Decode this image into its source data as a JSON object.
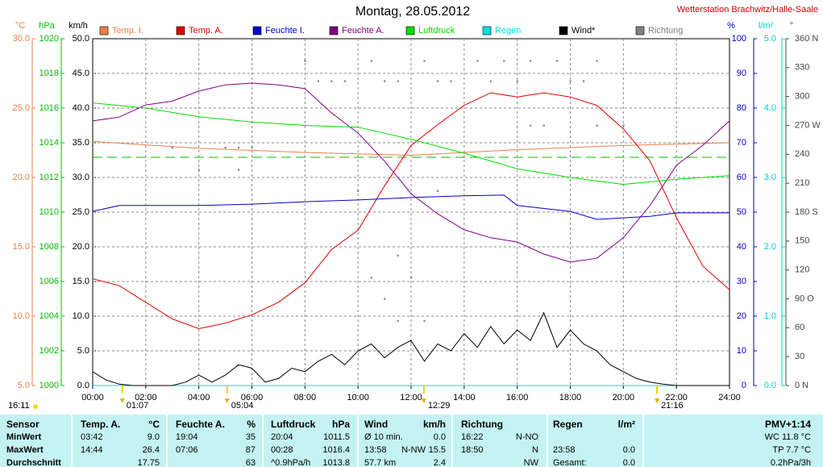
{
  "chart_data": {
    "type": "line",
    "title": "Montag, 28.05.2012",
    "subtitle": "Wetterstation Brachwitz/Halle-Saale",
    "xlim": [
      0,
      24
    ],
    "xticks": [
      {
        "value": 0,
        "label": "00:00"
      },
      {
        "value": 2,
        "label": "02:00"
      },
      {
        "value": 4,
        "label": "04:00"
      },
      {
        "value": 6,
        "label": "06:00"
      },
      {
        "value": 8,
        "label": "08:00"
      },
      {
        "value": 10,
        "label": "10:00"
      },
      {
        "value": 12,
        "label": "12:00"
      },
      {
        "value": 14,
        "label": "14:00"
      },
      {
        "value": 16,
        "label": "16:00"
      },
      {
        "value": 18,
        "label": "18:00"
      },
      {
        "value": 20,
        "label": "20:00"
      },
      {
        "value": 22,
        "label": "22:00"
      },
      {
        "value": 24,
        "label": "24:00"
      }
    ],
    "grid": true,
    "axes": [
      {
        "label": "°C",
        "color": "#e8804a",
        "ylim": [
          5,
          30
        ],
        "yticks": [
          {
            "value": 5,
            "label": "5.0"
          },
          {
            "value": 10,
            "label": "10.0"
          },
          {
            "value": 15,
            "label": "15.0"
          },
          {
            "value": 20,
            "label": "20.0"
          },
          {
            "value": 25,
            "label": "25.0"
          },
          {
            "value": 30,
            "label": "30.0"
          }
        ]
      },
      {
        "label": "hPa",
        "color": "#00c000",
        "ylim": [
          1000,
          1020
        ],
        "yticks": [
          1000,
          1002,
          1004,
          1006,
          1008,
          1010,
          1012,
          1014,
          1016,
          1018,
          1020
        ]
      },
      {
        "label": "km/h",
        "color": "#000000",
        "ylim": [
          0,
          50
        ],
        "yticks": [
          {
            "value": 0,
            "label": "0.0"
          },
          {
            "value": 5,
            "label": "5.0"
          },
          {
            "value": 10,
            "label": "10.0"
          },
          {
            "value": 15,
            "label": "15.0"
          },
          {
            "value": 20,
            "label": "20.0"
          },
          {
            "value": 25,
            "label": "25.0"
          },
          {
            "value": 30,
            "label": "30.0"
          },
          {
            "value": 35,
            "label": "35.0"
          },
          {
            "value": 40,
            "label": "40.0"
          },
          {
            "value": 45,
            "label": "45.0"
          },
          {
            "value": 50,
            "label": "50.0"
          }
        ]
      },
      {
        "label": "%",
        "color": "#0000cc",
        "ylim": [
          0,
          100
        ],
        "yticks": [
          0,
          10,
          20,
          30,
          40,
          50,
          60,
          70,
          80,
          90,
          100
        ]
      },
      {
        "label": "l/m²",
        "color": "#00d0d0",
        "ylim": [
          0,
          5
        ],
        "yticks": [
          {
            "value": 0,
            "label": "0.0"
          },
          {
            "value": 1,
            "label": "1.0"
          },
          {
            "value": 2,
            "label": "2.0"
          },
          {
            "value": 3,
            "label": "3.0"
          },
          {
            "value": 4,
            "label": "4.0"
          },
          {
            "value": 5,
            "label": "5.0"
          }
        ]
      },
      {
        "label": "°",
        "color": "#444444",
        "ylim": [
          0,
          360
        ],
        "yticks": [
          {
            "value": 0,
            "label": "0 N"
          },
          30,
          60,
          {
            "value": 90,
            "label": "90 O"
          },
          120,
          150,
          {
            "value": 180,
            "label": "180 S"
          },
          210,
          240,
          {
            "value": 270,
            "label": "270 W"
          },
          300,
          330,
          {
            "value": 360,
            "label": "360 N"
          }
        ]
      }
    ],
    "series": [
      {
        "name": "Temp. I.",
        "color": "#e8804a",
        "axis": 0,
        "x": [
          0,
          4,
          8,
          12,
          16,
          20,
          24
        ],
        "values": [
          22.6,
          22.1,
          21.8,
          21.6,
          22.0,
          22.3,
          22.5
        ]
      },
      {
        "name": "Temp. A.",
        "color": "#e00000",
        "axis": 0,
        "x": [
          0,
          1,
          2,
          3,
          4,
          5,
          6,
          7,
          8,
          9,
          10,
          11,
          12,
          13,
          14,
          15,
          16,
          17,
          18,
          19,
          20,
          21,
          22,
          23,
          24
        ],
        "values": [
          12.7,
          12.2,
          11.0,
          9.8,
          9.1,
          9.5,
          10.1,
          11.0,
          12.4,
          14.8,
          16.2,
          19.4,
          22.3,
          23.8,
          25.2,
          26.1,
          25.8,
          26.1,
          25.8,
          25.2,
          23.5,
          21.2,
          17.1,
          13.6,
          11.9
        ]
      },
      {
        "name": "Feuchte I.",
        "color": "#0000cc",
        "axis": 3,
        "x": [
          0,
          1,
          4,
          6,
          8,
          10,
          12,
          14,
          15.5,
          16,
          18,
          19,
          21,
          22,
          24
        ],
        "values": [
          50.2,
          51.9,
          51.9,
          52.3,
          53.0,
          53.5,
          54.2,
          54.7,
          54.9,
          51.9,
          50.2,
          47.9,
          48.8,
          49.8,
          49.8
        ]
      },
      {
        "name": "Feuchte A.",
        "color": "#800080",
        "axis": 3,
        "x": [
          0,
          1,
          2,
          3,
          4,
          5,
          6,
          7,
          8,
          9,
          10,
          11,
          12,
          13,
          14,
          15,
          16,
          17,
          18,
          19,
          20,
          21,
          22,
          23,
          24
        ],
        "values": [
          76.3,
          77.4,
          80.9,
          82.0,
          84.9,
          86.7,
          87.2,
          86.7,
          85.6,
          78.6,
          72.8,
          64.7,
          55.3,
          49.5,
          44.9,
          42.6,
          41.4,
          37.9,
          35.6,
          36.7,
          42.6,
          51.9,
          63.5,
          69.3,
          76.3
        ]
      },
      {
        "name": "Luftdruck",
        "color": "#00dd00",
        "axis": 1,
        "x": [
          0,
          2,
          4,
          6,
          8,
          10,
          12,
          14,
          16,
          18,
          20,
          22,
          24
        ],
        "values": [
          1016.3,
          1016.0,
          1015.5,
          1015.2,
          1015.0,
          1014.9,
          1014.2,
          1013.4,
          1012.5,
          1012.0,
          1011.6,
          1011.9,
          1012.1
        ]
      },
      {
        "name": "Regen",
        "color": "#00e0e0",
        "axis": 4,
        "x": [
          0,
          24
        ],
        "values": [
          0,
          0
        ]
      },
      {
        "name": "Wind*",
        "color": "#000000",
        "axis": 2,
        "x": [
          0,
          0.5,
          1,
          1.5,
          2,
          2.5,
          3,
          3.5,
          4,
          4.5,
          5,
          5.5,
          6,
          6.5,
          7,
          7.5,
          8,
          8.5,
          9,
          9.5,
          10,
          10.5,
          11,
          11.5,
          12,
          12.5,
          13,
          13.5,
          14,
          14.5,
          15,
          15.5,
          16,
          16.5,
          17,
          17.5,
          18,
          18.5,
          19,
          19.5,
          20,
          20.5,
          21,
          21.5,
          22,
          23,
          24
        ],
        "values": [
          2.0,
          0.8,
          0.2,
          0,
          0,
          0,
          0,
          0.5,
          1.5,
          0.5,
          1.5,
          3.0,
          2.5,
          0.5,
          1.0,
          2.5,
          2.0,
          3.5,
          4.5,
          3.0,
          5.0,
          6.0,
          4.0,
          5.5,
          6.5,
          3.5,
          6.0,
          5.0,
          7.5,
          5.5,
          8.5,
          6.0,
          8.0,
          6.5,
          10.5,
          5.5,
          8.0,
          6.0,
          5.0,
          3.0,
          2.0,
          1.0,
          0.5,
          0.2,
          0,
          0,
          0
        ]
      },
      {
        "name": "Richtung",
        "color": "#808080",
        "axis": 5,
        "mode": "dots",
        "x": [
          8.0,
          8.5,
          9.0,
          9.5,
          10.5,
          11.0,
          11.5,
          12.5,
          13.0,
          13.5,
          14.5,
          15.0,
          15.5,
          16.0,
          16.5,
          17.5,
          18.0,
          18.5,
          19.0,
          16.5,
          17.0,
          5.0,
          5.5,
          6.0,
          12.0,
          12.5,
          10.5,
          11.0,
          11.5,
          10.0,
          13.0,
          20.0,
          19.0,
          3.0,
          12.0,
          11.5,
          4.0,
          5.5
        ],
        "values": [
          337,
          316,
          316,
          316,
          337,
          316,
          316,
          337,
          316,
          316,
          337,
          316,
          337,
          316,
          337,
          337,
          316,
          316,
          337,
          270,
          270,
          247,
          247,
          247,
          45,
          67,
          112,
          90,
          135,
          202,
          202,
          270,
          270,
          247,
          112,
          67,
          224,
          224
        ]
      }
    ],
    "left_note": "16:11",
    "markers": [
      {
        "x": 1.117,
        "label": "01:07"
      },
      {
        "x": 5.067,
        "label": "05:04"
      },
      {
        "x": 12.483,
        "label": "12:29"
      },
      {
        "x": 21.267,
        "label": "21:16"
      }
    ]
  },
  "table": {
    "header": [
      "Sensor",
      "Temp. A.",
      "°C",
      "Feuchte A.",
      "%",
      "Luftdruck",
      "hPa",
      "Wind",
      null,
      "km/h",
      "Richtung",
      null,
      "Regen",
      "l/m²",
      "PMV+1:14"
    ],
    "rows": [
      [
        "MinWert",
        "03:42",
        "9.0",
        "19:04",
        "35",
        "20:04",
        "1011.5",
        "Ø 10 min.",
        null,
        "0.0",
        "16:22",
        "N-NO",
        null,
        null,
        "WC 11.8 °C"
      ],
      [
        "MaxWert",
        "14:44",
        "26.4",
        "07:06",
        "87",
        "00:28",
        "1016.4",
        "13:58",
        "N-NW",
        "15.5",
        "18:50",
        "N",
        "23:58",
        "0.0",
        "TP 7.7 °C"
      ],
      [
        "Durchschnitt",
        null,
        "17.75",
        null,
        "63",
        "^0.9hPa/h",
        "1013.8",
        "57.7 km",
        null,
        "2.4",
        null,
        "NW",
        "Gesamt:",
        "0.0",
        "0.2hPa/3h"
      ]
    ]
  }
}
